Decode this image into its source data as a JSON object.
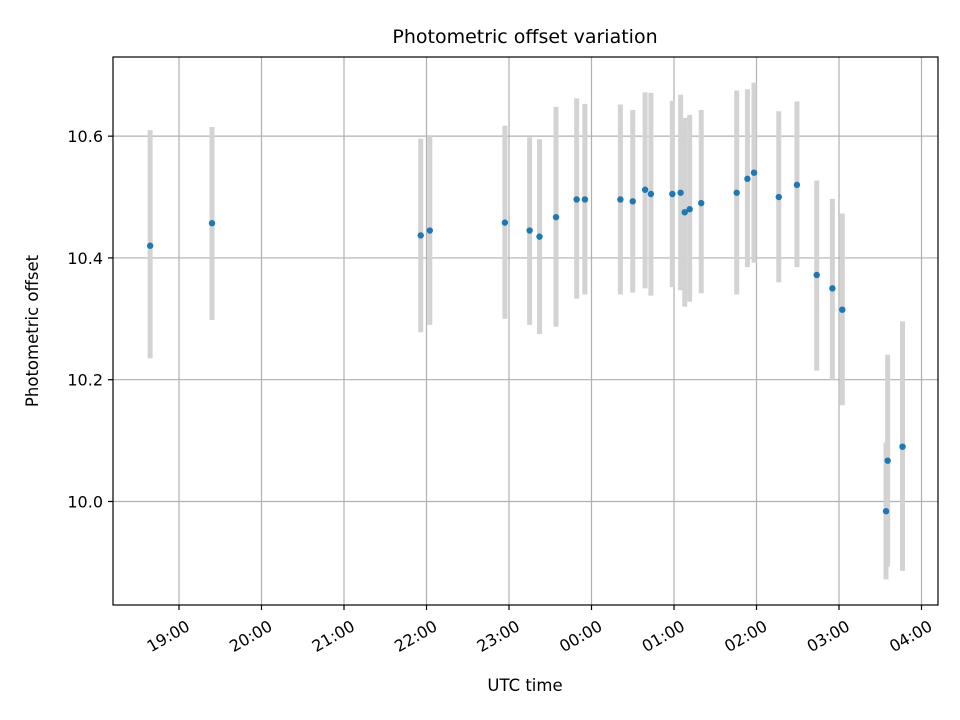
{
  "chart_data": {
    "type": "scatter",
    "title": "Photometric offset variation",
    "xlabel": "UTC time",
    "ylabel": "Photometric offset",
    "x_unit": "UTC hours (values >= 24 are after midnight)",
    "xlim": [
      18.2,
      28.2
    ],
    "ylim": [
      9.83,
      10.73
    ],
    "grid": true,
    "x_ticks": [
      {
        "value": 19,
        "label": "19:00"
      },
      {
        "value": 20,
        "label": "20:00"
      },
      {
        "value": 21,
        "label": "21:00"
      },
      {
        "value": 22,
        "label": "22:00"
      },
      {
        "value": 23,
        "label": "23:00"
      },
      {
        "value": 24,
        "label": "00:00"
      },
      {
        "value": 25,
        "label": "01:00"
      },
      {
        "value": 26,
        "label": "02:00"
      },
      {
        "value": 27,
        "label": "03:00"
      },
      {
        "value": 28,
        "label": "04:00"
      }
    ],
    "y_ticks": [
      {
        "value": 10.0,
        "label": "10.0"
      },
      {
        "value": 10.2,
        "label": "10.2"
      },
      {
        "value": 10.4,
        "label": "10.4"
      },
      {
        "value": 10.6,
        "label": "10.6"
      }
    ],
    "colors": {
      "point": "#1f77b4",
      "errorbar": "#d3d3d3",
      "grid": "#b0b0b0"
    },
    "points": [
      {
        "time": "18:39",
        "x": 18.65,
        "y": 10.42,
        "ylow": 10.235,
        "yhigh": 10.61
      },
      {
        "time": "19:24",
        "x": 19.4,
        "y": 10.457,
        "ylow": 10.298,
        "yhigh": 10.615
      },
      {
        "time": "21:56",
        "x": 21.93,
        "y": 10.437,
        "ylow": 10.278,
        "yhigh": 10.596
      },
      {
        "time": "22:02",
        "x": 22.04,
        "y": 10.445,
        "ylow": 10.29,
        "yhigh": 10.6
      },
      {
        "time": "22:57",
        "x": 22.95,
        "y": 10.458,
        "ylow": 10.3,
        "yhigh": 10.617
      },
      {
        "time": "23:15",
        "x": 23.25,
        "y": 10.445,
        "ylow": 10.29,
        "yhigh": 10.598
      },
      {
        "time": "23:22",
        "x": 23.37,
        "y": 10.435,
        "ylow": 10.275,
        "yhigh": 10.595
      },
      {
        "time": "23:35",
        "x": 23.57,
        "y": 10.467,
        "ylow": 10.287,
        "yhigh": 10.648
      },
      {
        "time": "23:49",
        "x": 23.82,
        "y": 10.496,
        "ylow": 10.333,
        "yhigh": 10.662
      },
      {
        "time": "23:55",
        "x": 23.92,
        "y": 10.496,
        "ylow": 10.34,
        "yhigh": 10.653
      },
      {
        "time": "00:21",
        "x": 24.35,
        "y": 10.496,
        "ylow": 10.34,
        "yhigh": 10.652
      },
      {
        "time": "00:30",
        "x": 24.5,
        "y": 10.493,
        "ylow": 10.343,
        "yhigh": 10.643
      },
      {
        "time": "00:39",
        "x": 24.65,
        "y": 10.512,
        "ylow": 10.35,
        "yhigh": 10.672
      },
      {
        "time": "00:43",
        "x": 24.72,
        "y": 10.505,
        "ylow": 10.338,
        "yhigh": 10.671
      },
      {
        "time": "00:59",
        "x": 24.98,
        "y": 10.505,
        "ylow": 10.352,
        "yhigh": 10.658
      },
      {
        "time": "01:05",
        "x": 25.08,
        "y": 10.507,
        "ylow": 10.347,
        "yhigh": 10.668
      },
      {
        "time": "01:08",
        "x": 25.13,
        "y": 10.475,
        "ylow": 10.32,
        "yhigh": 10.63
      },
      {
        "time": "01:11",
        "x": 25.19,
        "y": 10.48,
        "ylow": 10.328,
        "yhigh": 10.635
      },
      {
        "time": "01:19",
        "x": 25.33,
        "y": 10.49,
        "ylow": 10.342,
        "yhigh": 10.643
      },
      {
        "time": "01:45",
        "x": 25.76,
        "y": 10.507,
        "ylow": 10.34,
        "yhigh": 10.675
      },
      {
        "time": "01:53",
        "x": 25.89,
        "y": 10.53,
        "ylow": 10.385,
        "yhigh": 10.677
      },
      {
        "time": "01:58",
        "x": 25.97,
        "y": 10.54,
        "ylow": 10.392,
        "yhigh": 10.688
      },
      {
        "time": "02:16",
        "x": 26.27,
        "y": 10.5,
        "ylow": 10.36,
        "yhigh": 10.641
      },
      {
        "time": "02:29",
        "x": 26.49,
        "y": 10.52,
        "ylow": 10.385,
        "yhigh": 10.657
      },
      {
        "time": "02:44",
        "x": 26.73,
        "y": 10.372,
        "ylow": 10.215,
        "yhigh": 10.527
      },
      {
        "time": "02:55",
        "x": 26.92,
        "y": 10.35,
        "ylow": 10.2,
        "yhigh": 10.497
      },
      {
        "time": "03:02",
        "x": 27.04,
        "y": 10.315,
        "ylow": 10.158,
        "yhigh": 10.473
      },
      {
        "time": "03:34",
        "x": 27.57,
        "y": 9.984,
        "ylow": 9.872,
        "yhigh": 10.097
      },
      {
        "time": "03:35",
        "x": 27.59,
        "y": 10.067,
        "ylow": 9.893,
        "yhigh": 10.241
      },
      {
        "time": "03:46",
        "x": 27.77,
        "y": 10.09,
        "ylow": 9.886,
        "yhigh": 10.296
      }
    ]
  }
}
